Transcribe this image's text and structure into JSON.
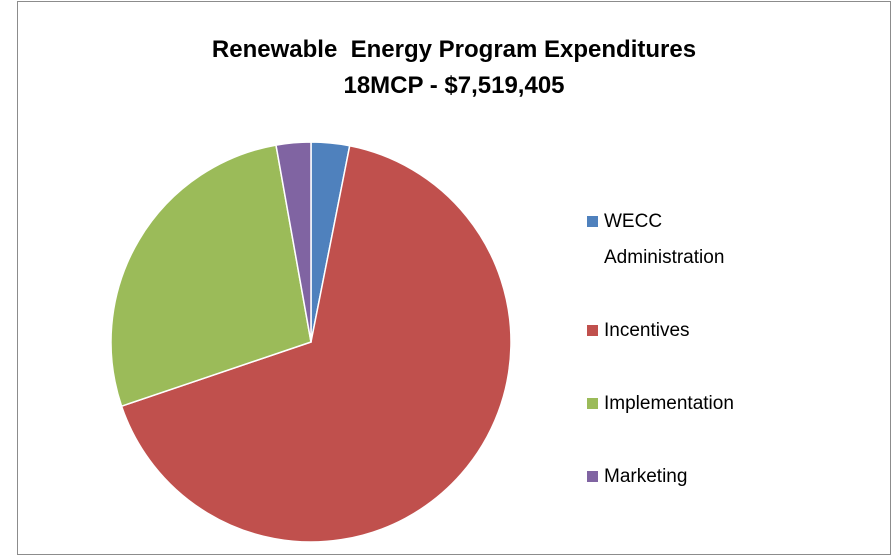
{
  "chart_data": {
    "type": "pie",
    "title": "Renewable  Energy Program Expenditures",
    "subtitle": "18MCP - $7,519,405",
    "categories": [
      "WECC Administration",
      "Incentives",
      "Implementation",
      "Marketing"
    ],
    "values": [
      3.1,
      66.7,
      27.4,
      2.8
    ],
    "colors": [
      "#4f81bd",
      "#c0504d",
      "#9bbb59",
      "#8064a2"
    ],
    "legend": "right"
  }
}
